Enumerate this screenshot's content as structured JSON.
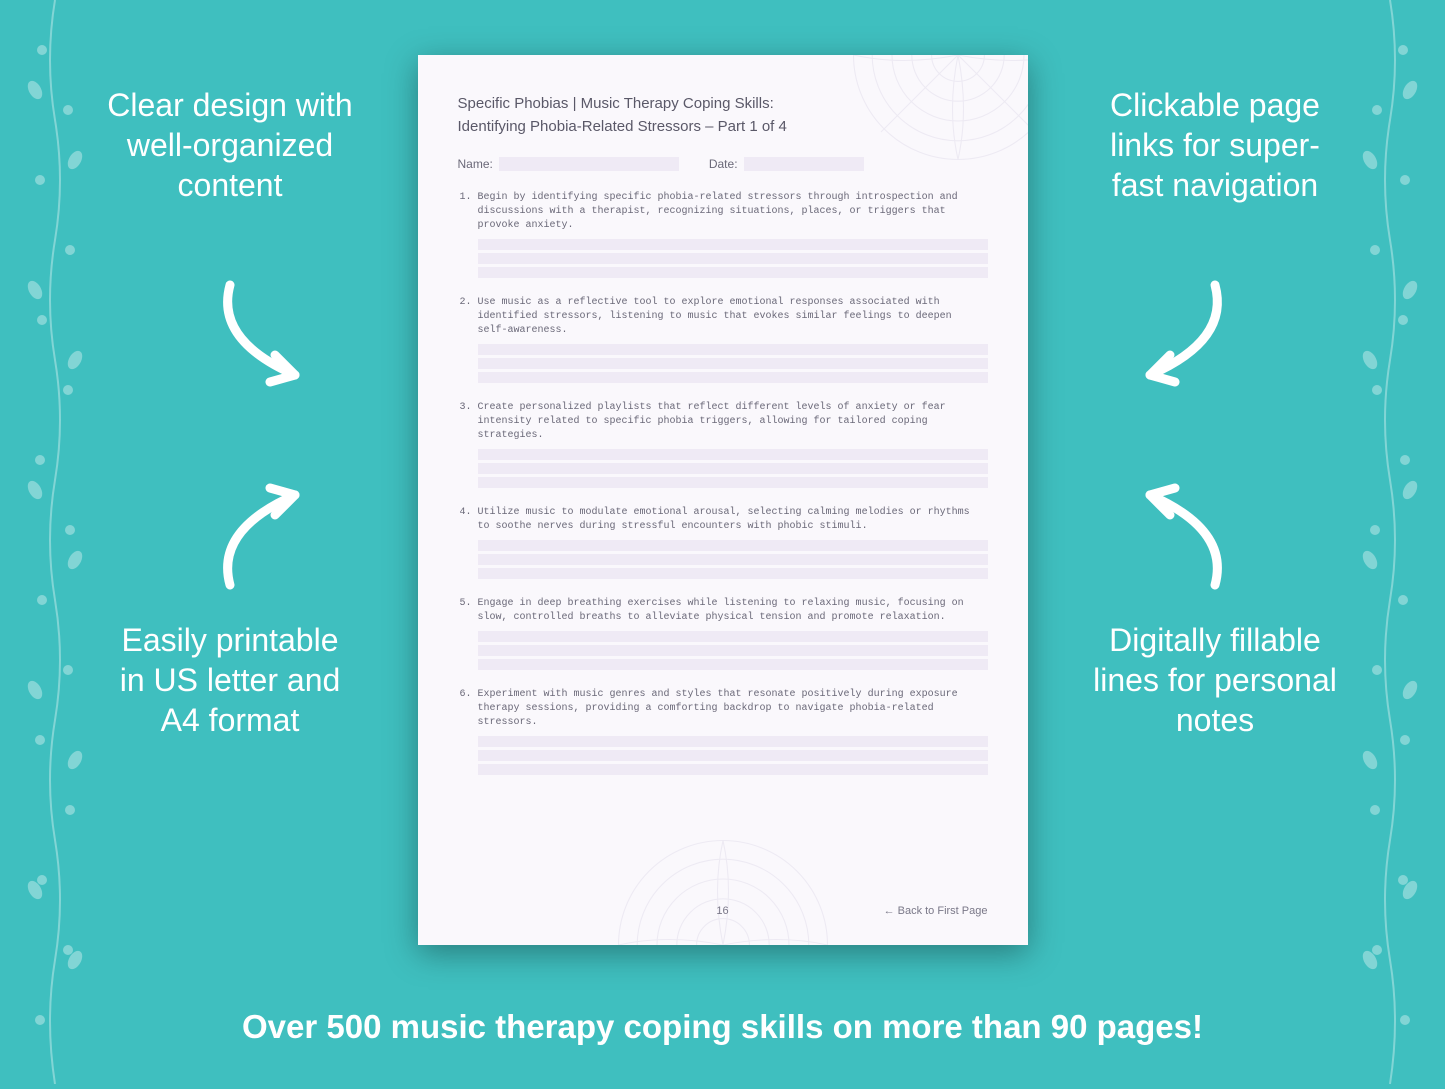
{
  "colors": {
    "background": "#3fbfbf",
    "callout_text": "#ffffff",
    "page_bg": "#faf8fc",
    "fill_line": "#efeaf5",
    "doc_text": "#5a5868",
    "body_text": "#6a6878",
    "mandala": "#c9c2da"
  },
  "callouts": {
    "top_left": "Clear design with well-organized content",
    "top_right": "Clickable page links for super-fast navigation",
    "bottom_left": "Easily printable in US letter and A4 format",
    "bottom_right": "Digitally fillable lines for personal notes"
  },
  "footer": "Over 500 music therapy coping skills on more than 90 pages!",
  "document": {
    "title": "Specific Phobias | Music Therapy Coping Skills:",
    "subtitle": "Identifying Phobia-Related Stressors – Part 1 of 4",
    "name_label": "Name:",
    "date_label": "Date:",
    "items": [
      "Begin by identifying specific phobia-related stressors through introspection and discussions with a therapist, recognizing situations, places, or triggers that provoke anxiety.",
      "Use music as a reflective tool to explore emotional responses associated with identified stressors, listening to music that evokes similar feelings to deepen self-awareness.",
      "Create personalized playlists that reflect different levels of anxiety or fear intensity related to specific phobia triggers, allowing for tailored coping strategies.",
      "Utilize music to modulate emotional arousal, selecting calming melodies or rhythms to soothe nerves during stressful encounters with phobic stimuli.",
      "Engage in deep breathing exercises while listening to relaxing music, focusing on slow, controlled breaths to alleviate physical tension and promote relaxation.",
      "Experiment with music genres and styles that resonate positively during exposure therapy sessions, providing a comforting backdrop to navigate phobia-related stressors."
    ],
    "page_number": "16",
    "back_link": "← Back to First Page"
  }
}
